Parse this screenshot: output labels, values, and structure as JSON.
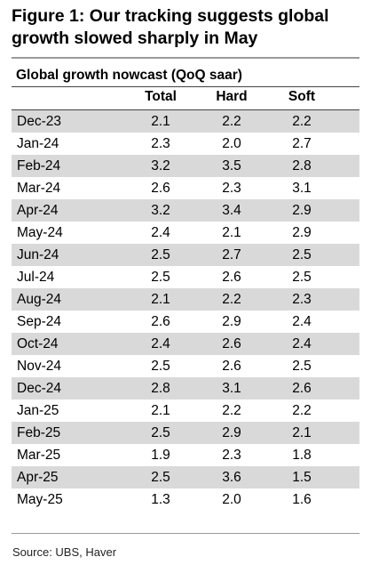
{
  "figure": {
    "title": "Figure 1: Our tracking suggests global growth slowed sharply in May",
    "source": "Source: UBS, Haver"
  },
  "chart_data": {
    "type": "table",
    "title": "Global growth nowcast (QoQ saar)",
    "columns": [
      "Total",
      "Hard",
      "Soft"
    ],
    "rows": [
      {
        "label": "Dec-23",
        "values": [
          "2.1",
          "2.2",
          "2.2"
        ]
      },
      {
        "label": "Jan-24",
        "values": [
          "2.3",
          "2.0",
          "2.7"
        ]
      },
      {
        "label": "Feb-24",
        "values": [
          "3.2",
          "3.5",
          "2.8"
        ]
      },
      {
        "label": "Mar-24",
        "values": [
          "2.6",
          "2.3",
          "3.1"
        ]
      },
      {
        "label": "Apr-24",
        "values": [
          "3.2",
          "3.4",
          "2.9"
        ]
      },
      {
        "label": "May-24",
        "values": [
          "2.4",
          "2.1",
          "2.9"
        ]
      },
      {
        "label": "Jun-24",
        "values": [
          "2.5",
          "2.7",
          "2.5"
        ]
      },
      {
        "label": "Jul-24",
        "values": [
          "2.5",
          "2.6",
          "2.5"
        ]
      },
      {
        "label": "Aug-24",
        "values": [
          "2.1",
          "2.2",
          "2.3"
        ]
      },
      {
        "label": "Sep-24",
        "values": [
          "2.6",
          "2.9",
          "2.4"
        ]
      },
      {
        "label": "Oct-24",
        "values": [
          "2.4",
          "2.6",
          "2.4"
        ]
      },
      {
        "label": "Nov-24",
        "values": [
          "2.5",
          "2.6",
          "2.5"
        ]
      },
      {
        "label": "Dec-24",
        "values": [
          "2.8",
          "3.1",
          "2.6"
        ]
      },
      {
        "label": "Jan-25",
        "values": [
          "2.1",
          "2.2",
          "2.2"
        ]
      },
      {
        "label": "Feb-25",
        "values": [
          "2.5",
          "2.9",
          "2.1"
        ]
      },
      {
        "label": "Mar-25",
        "values": [
          "1.9",
          "2.3",
          "1.8"
        ]
      },
      {
        "label": "Apr-25",
        "values": [
          "2.5",
          "3.6",
          "1.5"
        ]
      },
      {
        "label": "May-25",
        "values": [
          "1.3",
          "2.0",
          "1.6"
        ]
      }
    ]
  },
  "colors": {
    "row_shade": "#d9d9d9",
    "rule": "#9a9a9a"
  }
}
